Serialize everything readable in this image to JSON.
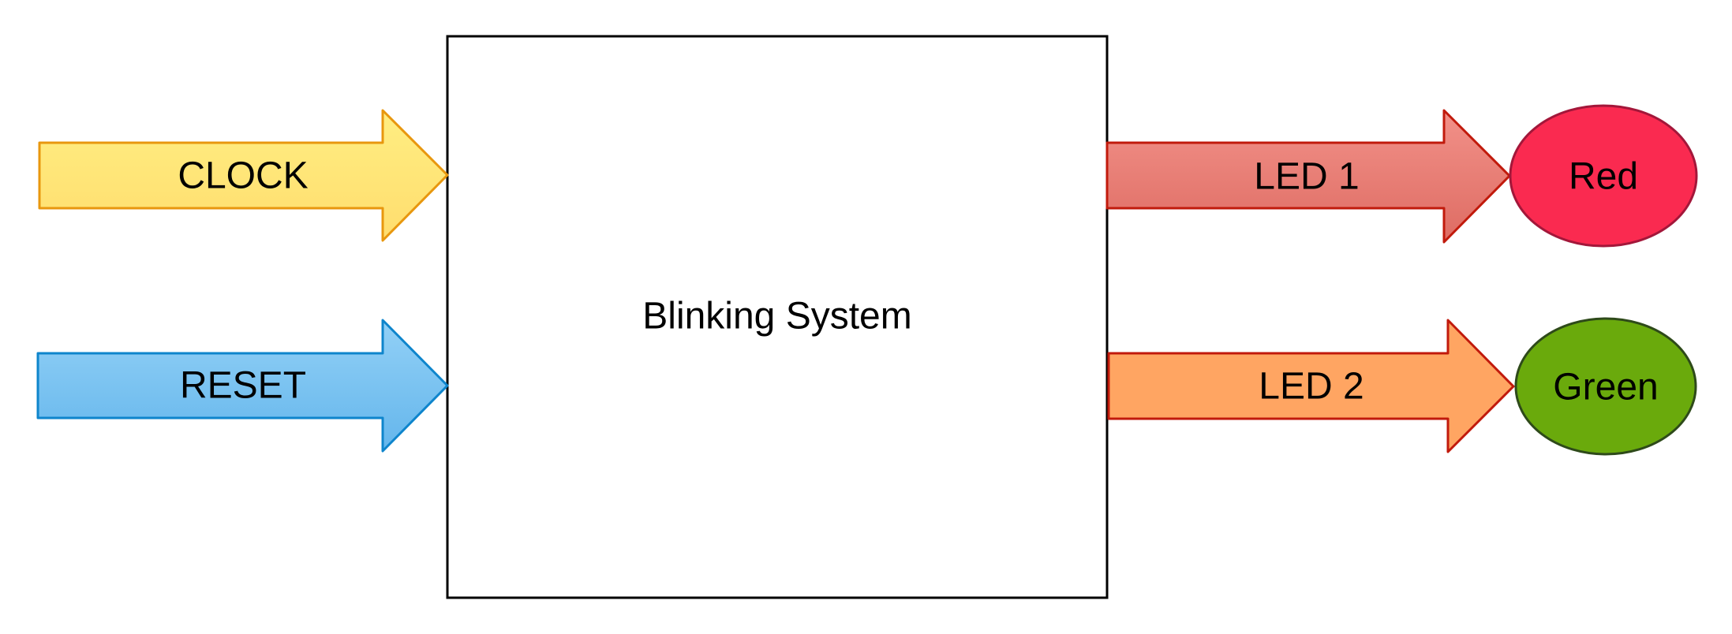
{
  "diagram": {
    "system": {
      "label": "Blinking System"
    },
    "inputs": {
      "clock": {
        "label": "CLOCK",
        "fill_top": "#FFEE82",
        "fill_bottom": "#FFDD6E",
        "stroke": "#E8970E"
      },
      "reset": {
        "label": "RESET",
        "fill_top": "#92D0F6",
        "fill_bottom": "#64B6EC",
        "stroke": "#0E85CC"
      }
    },
    "outputs": {
      "led1": {
        "label": "LED 1",
        "fill_top": "#F29189",
        "fill_bottom": "#DE6C63",
        "stroke": "#C11A0C"
      },
      "led2": {
        "label": "LED 2",
        "fill": "#FFA562",
        "stroke": "#C11A0C"
      }
    },
    "indicators": {
      "red": {
        "label": "Red",
        "fill": "#FA2A50",
        "stroke": "#A3173A"
      },
      "green": {
        "label": "Green",
        "fill": "#6AAA0C",
        "stroke": "#2E4A1A"
      }
    }
  }
}
